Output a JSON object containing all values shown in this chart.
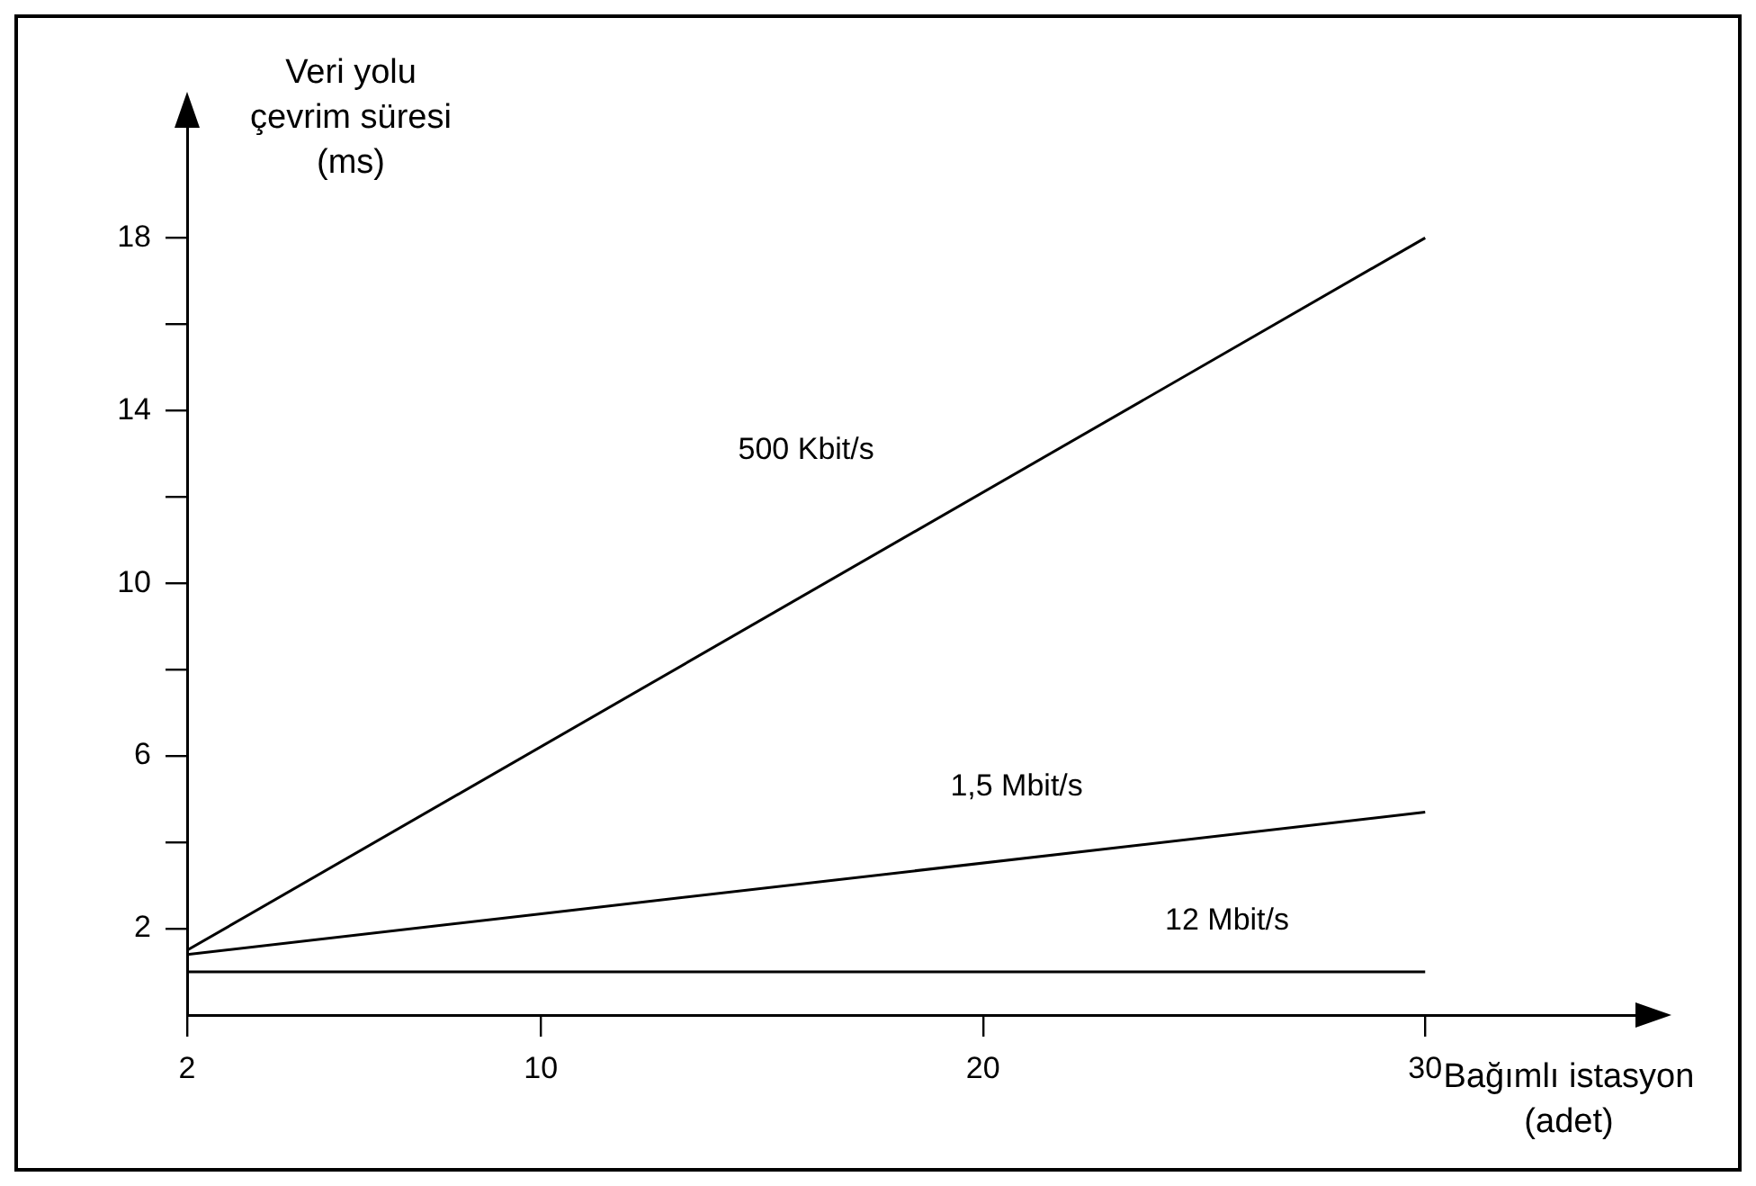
{
  "chart_data": {
    "type": "line",
    "ylabel": "Veri yolu çevrim süresi (ms)",
    "xlabel": "Bağımlı istasyon (adet)",
    "x": [
      2,
      30
    ],
    "xlim": [
      2,
      35
    ],
    "xticks": [
      2,
      10,
      20,
      30
    ],
    "ylim": [
      0,
      20.8
    ],
    "yticks": [
      2,
      {
        "value": 4,
        "label": null
      },
      6,
      {
        "value": 8,
        "label": null
      },
      10,
      {
        "value": 12,
        "label": null
      },
      14,
      {
        "value": 16,
        "label": null
      },
      18
    ],
    "grid": false,
    "legend": false,
    "marker": "none",
    "line_style": "solid",
    "series": [
      {
        "name": "500 Kbit/s",
        "color": "#000000",
        "values": [
          1.5,
          18
        ]
      },
      {
        "name": "1,5 Mbit/s",
        "color": "#000000",
        "values": [
          1.4,
          4.7
        ]
      },
      {
        "name": "12 Mbit/s",
        "color": "#000000",
        "values": [
          1,
          1
        ]
      }
    ]
  }
}
